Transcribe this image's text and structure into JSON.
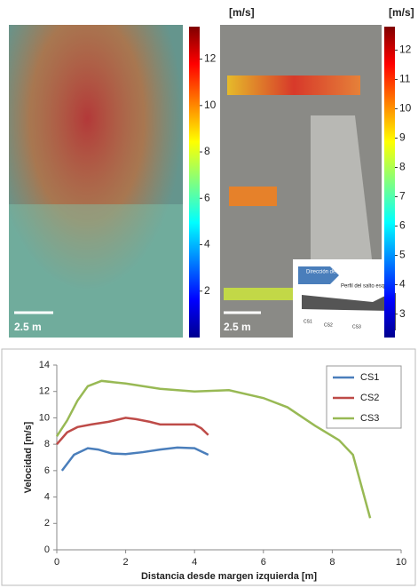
{
  "chart_data": [
    {
      "type": "colorbar",
      "label": "[m/s]",
      "ylim": [
        0,
        13.4
      ],
      "yticks": [
        2,
        4,
        6,
        8,
        10,
        12
      ],
      "scale_label": "2.5 m"
    },
    {
      "type": "colorbar",
      "label": "[m/s]",
      "ylim": [
        2.2,
        12.8
      ],
      "yticks": [
        3,
        4,
        5,
        6,
        7,
        8,
        9,
        10,
        11,
        12
      ],
      "scale_label": "2.5 m"
    },
    {
      "type": "line",
      "xlabel": "Distancia desde margen izquierda [m]",
      "ylabel": "Velocidad [m/s]",
      "xlim": [
        0,
        10
      ],
      "xticks": [
        0,
        2,
        4,
        6,
        8,
        10
      ],
      "ylim": [
        0,
        14
      ],
      "yticks": [
        0,
        2,
        4,
        6,
        8,
        10,
        12,
        14
      ],
      "series": [
        {
          "name": "CS1",
          "color": "#4a7ebb",
          "x": [
            0.15,
            0.5,
            0.9,
            1.2,
            1.6,
            2,
            2.5,
            3,
            3.5,
            4,
            4.4
          ],
          "values": [
            6.0,
            7.2,
            7.7,
            7.6,
            7.3,
            7.25,
            7.4,
            7.6,
            7.75,
            7.7,
            7.2
          ]
        },
        {
          "name": "CS2",
          "color": "#be4b48",
          "x": [
            0,
            0.3,
            0.6,
            1,
            1.5,
            2,
            2.3,
            2.7,
            3,
            3.5,
            4,
            4.2,
            4.4
          ],
          "values": [
            8.0,
            8.9,
            9.3,
            9.5,
            9.7,
            10.0,
            9.9,
            9.7,
            9.5,
            9.5,
            9.5,
            9.2,
            8.7
          ]
        },
        {
          "name": "CS3",
          "color": "#98b954",
          "x": [
            0,
            0.3,
            0.6,
            0.9,
            1.3,
            2,
            3,
            4,
            5,
            6,
            6.7,
            7.5,
            8.2,
            8.6,
            9.1
          ],
          "values": [
            8.6,
            9.8,
            11.3,
            12.4,
            12.8,
            12.6,
            12.2,
            12.0,
            12.1,
            11.5,
            10.8,
            9.4,
            8.3,
            7.2,
            2.4
          ]
        }
      ]
    }
  ],
  "inset": {
    "flow": "Dirección del flujo",
    "profile": "Perfil del salto esquí",
    "sections": [
      "CS1",
      "CS2",
      "CS3"
    ]
  }
}
